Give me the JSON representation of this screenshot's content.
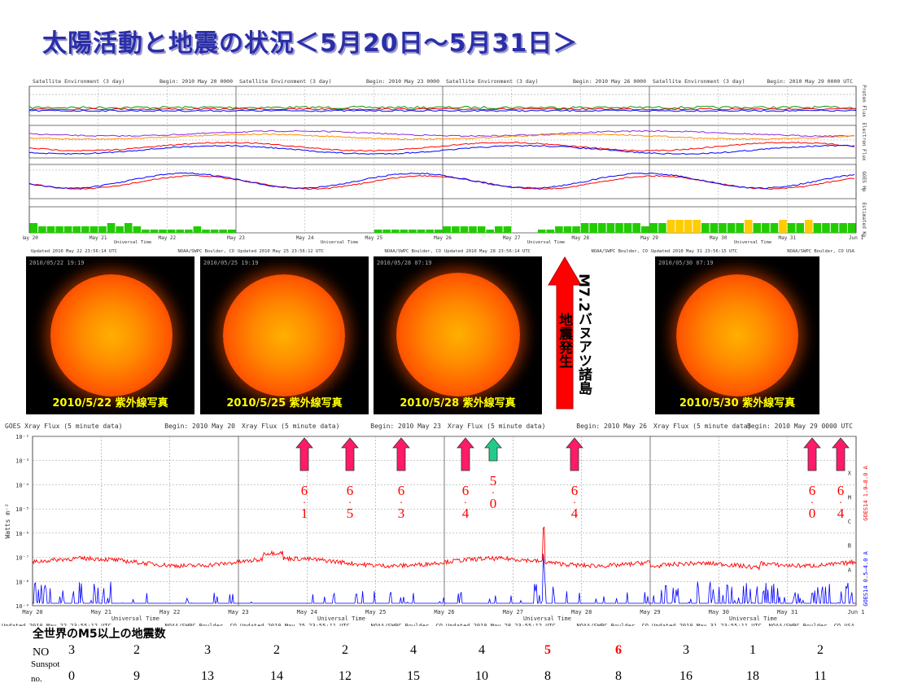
{
  "title": "太陽活動と地震の状況＜5月20日～5月31日＞",
  "colors": {
    "title": "#2b2ea8",
    "highlight": "#ff0000",
    "bar_green": "#22cc00",
    "bar_yellow": "#ffcc00",
    "bar_red": "#ff0000",
    "xray_long": "#ff0000",
    "xray_short": "#0000ff"
  },
  "top_panels": {
    "headers": [
      {
        "left": "Satellite Environment (3 day)",
        "right": "Begin:  2010 May 20 0000"
      },
      {
        "left": "Satellite Environment (3 day)",
        "right": "Begin:  2010 May 23 0000"
      },
      {
        "left": "Satellite Environment (3 day)",
        "right": "Begin:  2010 May 26 0000"
      },
      {
        "left": "Satellite Environment (3 day)",
        "right": "Begin:  2010 May 29 0000 UTC"
      }
    ],
    "row_labels": [
      "Proton Flux",
      "Electron Flux",
      "GOES Hp",
      "Estimated Kp"
    ],
    "day_ticks": [
      "May 20",
      "May 21",
      "May 22",
      "May 23",
      "May 24",
      "May 25",
      "May 26",
      "May 27",
      "May 28",
      "May 29",
      "May 30",
      "May 31",
      "Jun 1"
    ],
    "xlabel": "Universal Time",
    "footers": [
      "Updated 2010 May 22 23:56:14 UTC",
      "NOAA/SWPC Boulder, CO",
      "Updated 2010 May 25 23:56:12 UTC",
      "NOAA/SWPC Boulder, CO",
      "Updated 2010 May 28 23:56:14 UTC",
      "NOAA/SWPC Boulder, CO",
      "Updated 2010 May 31 23:56:15 UTC",
      "NOAA/SWPC Boulder, CO USA"
    ]
  },
  "sun_images": [
    {
      "caption": "2010/5/22 紫外線写真",
      "stamp": "2010/05/22 19:19"
    },
    {
      "caption": "2010/5/25 紫外線写真",
      "stamp": "2010/05/25 19:19"
    },
    {
      "caption": "2010/5/28 紫外線写真",
      "stamp": "2010/05/28 07:19"
    },
    {
      "caption": "2010/5/30 紫外線写真",
      "stamp": "2010/05/30 07:19"
    }
  ],
  "earthquake_note": {
    "line1": "M7.2バヌアツ諸島",
    "line2": "地震発生"
  },
  "xray_panel": {
    "headers": [
      {
        "left": "GOES Xray Flux (5 minute data)",
        "right": "Begin:  2010 May 20"
      },
      {
        "left": "Xray Flux (5 minute data)",
        "right": "Begin:  2010 May 23"
      },
      {
        "left": "Xray Flux (5 minute data)",
        "right": "Begin:  2010 May 26"
      },
      {
        "left": "Xray Flux (5 minute data)",
        "right": "Begin:  2010 May 29 0000 UTC"
      }
    ],
    "ylabel": "Watts m⁻²",
    "yticks": [
      "10⁻²",
      "10⁻³",
      "10⁻⁴",
      "10⁻⁵",
      "10⁻⁶",
      "10⁻⁷",
      "10⁻⁸",
      "10⁻⁹"
    ],
    "class_labels": [
      "X",
      "M",
      "C",
      "B",
      "A"
    ],
    "right_label_long": "GOES14 1.0–8.0 A",
    "right_label_short": "GOES14 0.5–4.0 A",
    "day_ticks": [
      "May 20",
      "May 21",
      "May 22",
      "May 23",
      "May 24",
      "May 25",
      "May 26",
      "May 27",
      "May 28",
      "May 29",
      "May 30",
      "May 31",
      "Jun 1"
    ],
    "xlabel": "Universal Time",
    "footers": [
      "Updated 2010 May 22 23:55:12 UTC",
      "NOAA/SWPC Boulder, CO",
      "Updated 2010 May 25 23:55:11 UTC",
      "NOAA/SWPC Boulder, CO",
      "Updated 2010 May 28 23:55:12 UTC",
      "NOAA/SWPC Boulder, CO",
      "Updated 2010 May 31 23:55:11 UTC",
      "NOAA/SWPC Boulder, CO USA"
    ]
  },
  "chart_data": [
    {
      "type": "bar",
      "title": "Estimated Kp",
      "xlabel": "Universal Time",
      "categories": [
        "May 20",
        "May 21",
        "May 22",
        "May 23",
        "May 24",
        "May 25",
        "May 26",
        "May 27",
        "May 28",
        "May 29",
        "May 30",
        "May 31"
      ],
      "kp_3hourly": [
        [
          3,
          2,
          2,
          2,
          2,
          2,
          2,
          2
        ],
        [
          2,
          3,
          2,
          3,
          2,
          1,
          1,
          1
        ],
        [
          1,
          1,
          1,
          2,
          1,
          1,
          1,
          1
        ],
        [
          0,
          0,
          0,
          0,
          0,
          0,
          0,
          0
        ],
        [
          0,
          0,
          0,
          0,
          0,
          0,
          0,
          0
        ],
        [
          1,
          1,
          1,
          1,
          1,
          1,
          1,
          1
        ],
        [
          2,
          2,
          2,
          2,
          2,
          1,
          2,
          2
        ],
        [
          0,
          0,
          0,
          1,
          1,
          2,
          2,
          2
        ],
        [
          3,
          3,
          3,
          3,
          3,
          3,
          3,
          2
        ],
        [
          3,
          3,
          4,
          4,
          4,
          4,
          3,
          3
        ],
        [
          3,
          3,
          3,
          4,
          3,
          3,
          3,
          4
        ],
        [
          3,
          3,
          4,
          3,
          3,
          3,
          3,
          3
        ]
      ],
      "ylim": [
        0,
        9
      ]
    },
    {
      "type": "table",
      "title": "全世界のM5以上の地震数",
      "columns": [
        "5/20",
        "5/21",
        "5/22",
        "5/23",
        "5/24",
        "5/25",
        "5/26",
        "5/27",
        "5/28",
        "5/29",
        "5/30",
        "5/31"
      ],
      "rows": [
        {
          "label": "NO",
          "values": [
            "3",
            "2",
            "3",
            "2",
            "2",
            "4",
            "4",
            "5",
            "6",
            "3",
            "1",
            "2"
          ],
          "highlight": [
            false,
            false,
            false,
            false,
            false,
            false,
            false,
            true,
            true,
            false,
            false,
            false
          ]
        },
        {
          "label": "Sunspot no.",
          "values": [
            "0",
            "9",
            "13",
            "14",
            "12",
            "15",
            "10",
            "8",
            "8",
            "16",
            "18",
            "11"
          ]
        }
      ]
    },
    {
      "type": "line",
      "title": "GOES Xray Flux (5 minute data)",
      "ylabel": "Watts m⁻²",
      "yscale": "log",
      "ylim": [
        "1e-9",
        "1e-2"
      ],
      "x": [
        "May 20",
        "Jun 1"
      ],
      "series": [
        {
          "name": "GOES14 1.0–8.0 A",
          "baseline_exponent": -7.2
        },
        {
          "name": "GOES14 0.5–4.0 A",
          "baseline_exponent": -8.8
        }
      ],
      "earthquake_markers": [
        {
          "label": "6.1",
          "color": "pink"
        },
        {
          "label": "6.5",
          "color": "pink"
        },
        {
          "label": "6.3",
          "color": "pink"
        },
        {
          "label": "6.4",
          "color": "pink"
        },
        {
          "label": "5.0",
          "color": "green"
        },
        {
          "label": "6.4",
          "color": "pink"
        },
        {
          "label": "6.0",
          "color": "pink"
        },
        {
          "label": "6.4",
          "color": "pink"
        }
      ]
    }
  ],
  "table_labels": {
    "heading": "全世界のM5以上の地震数",
    "row1": "NO",
    "row2a": "Sunspot",
    "row2b": "no."
  }
}
